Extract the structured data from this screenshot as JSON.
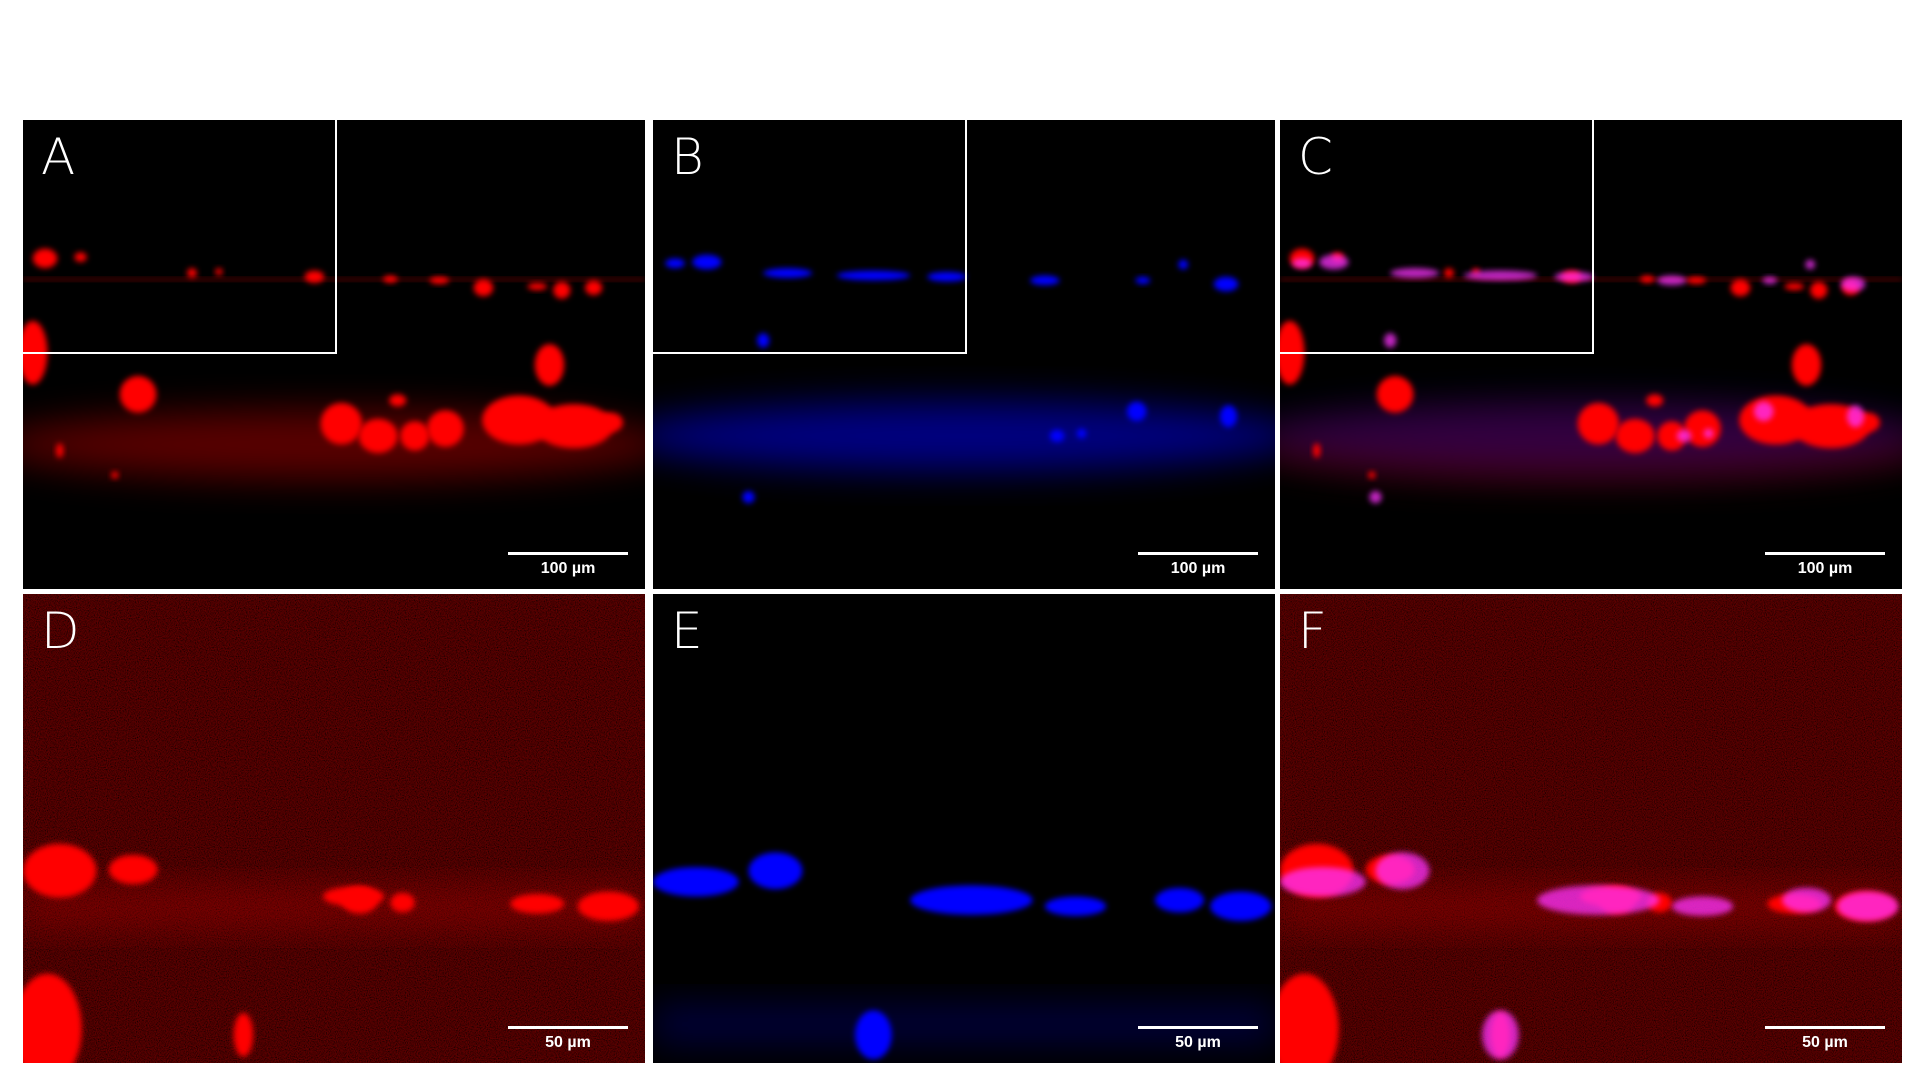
{
  "figure": {
    "panels": [
      {
        "label": "A",
        "channel": "red",
        "scale_bar": "100 µm",
        "inset": true
      },
      {
        "label": "B",
        "channel": "blue",
        "scale_bar": "100 µm",
        "inset": true
      },
      {
        "label": "C",
        "channel": "merge",
        "scale_bar": "100 µm",
        "inset": true
      },
      {
        "label": "D",
        "channel": "red",
        "scale_bar": "50 µm",
        "inset": false
      },
      {
        "label": "E",
        "channel": "blue",
        "scale_bar": "50 µm",
        "inset": false
      },
      {
        "label": "F",
        "channel": "merge",
        "scale_bar": "50 µm",
        "inset": false
      }
    ],
    "colors": {
      "red": "#ff0000",
      "blue": "#0000ff",
      "merge": "#ff33ff",
      "background": "#000000",
      "frame": "#ffffff"
    }
  }
}
